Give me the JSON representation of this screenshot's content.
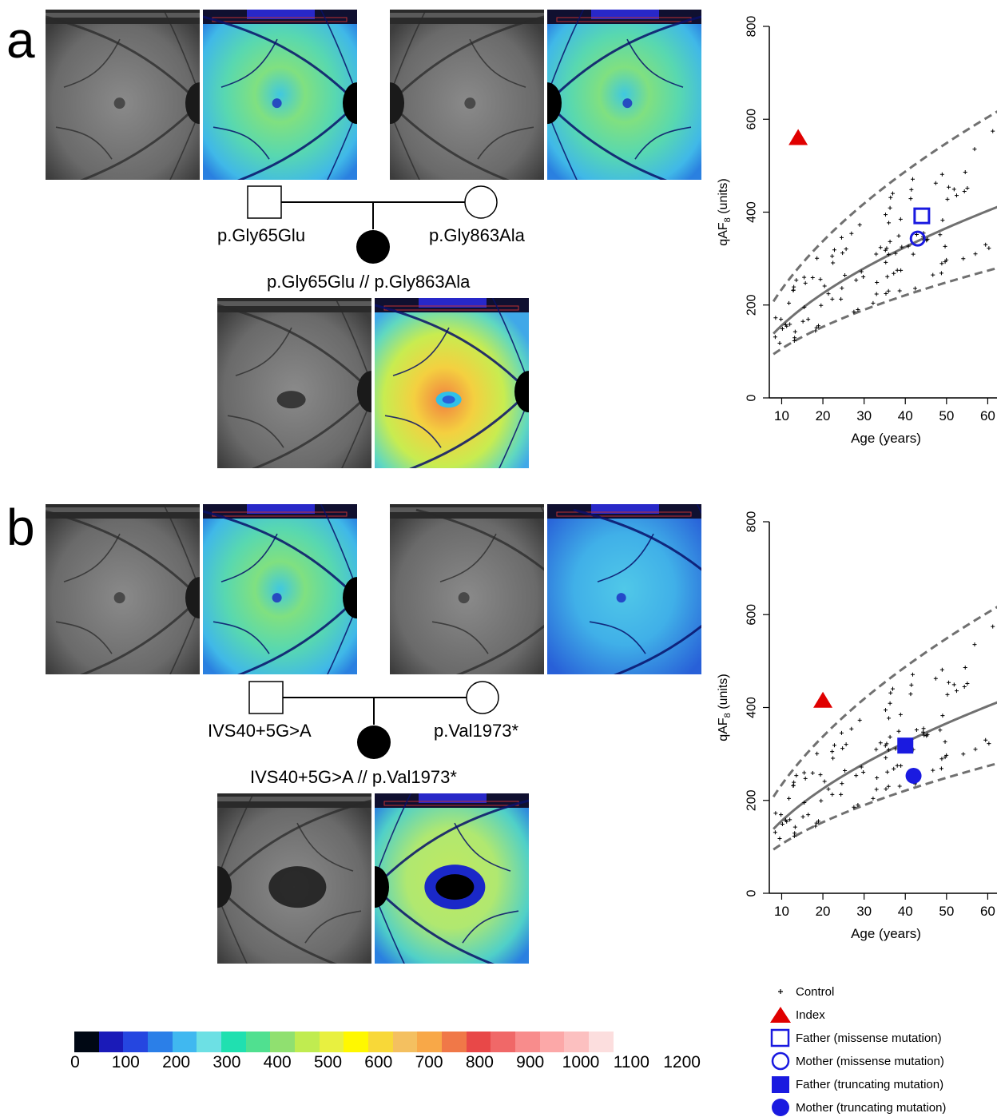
{
  "panels": [
    {
      "letter": "a",
      "father_label": "p.Gly65Glu",
      "mother_label": "p.Gly863Ala",
      "child_label": "p.Gly65Glu // p.Gly863Ala"
    },
    {
      "letter": "b",
      "father_label": "IVS40+5G>A",
      "mother_label": "p.Val1973*",
      "child_label": "IVS40+5G>A // p.Val1973*"
    }
  ],
  "colorbar": {
    "ticks": [
      "0",
      "100",
      "200",
      "300",
      "400",
      "500",
      "600",
      "700",
      "800",
      "900",
      "1000",
      "1100",
      "1200"
    ],
    "colors": [
      "#000814",
      "#1a1ab8",
      "#2546e0",
      "#2b7fe8",
      "#40b8f0",
      "#6de0e4",
      "#20e0b0",
      "#50e090",
      "#90e070",
      "#c0ec50",
      "#e8f040",
      "#fff800",
      "#f8d838",
      "#f4c060",
      "#f8a848",
      "#f07848",
      "#e84848",
      "#f06868",
      "#f88c8c",
      "#fca8a8",
      "#fcc0c0",
      "#fcdede"
    ]
  },
  "legend": [
    {
      "symbol": "plus",
      "label": "Control"
    },
    {
      "symbol": "triangle",
      "label": "Index"
    },
    {
      "symbol": "open-square",
      "label": "Father (missense mutation)"
    },
    {
      "symbol": "open-circle",
      "label": "Mother (missense mutation)"
    },
    {
      "symbol": "filled-square",
      "label": "Father (truncating mutation)"
    },
    {
      "symbol": "filled-circle",
      "label": "Mother (truncating mutation)"
    }
  ],
  "colors": {
    "index": "#e00000",
    "parents": "#1a1ae0",
    "curves": "#707070",
    "controls": "#000000"
  },
  "chart_data": [
    {
      "type": "scatter",
      "xlabel": "Age (years)",
      "ylabel": "qAF8 (units)",
      "ylabel_main": "qAF",
      "ylabel_sub": "8",
      "ylabel_unit": " (units)",
      "xlim": [
        7,
        70
      ],
      "ylim": [
        0,
        800
      ],
      "xticks": [
        10,
        20,
        30,
        40,
        50,
        60
      ],
      "yticks": [
        0,
        200,
        400,
        600,
        800
      ],
      "series": [
        {
          "name": "Index",
          "symbol": "triangle",
          "color": "#e00000",
          "x": [
            14
          ],
          "y": [
            560
          ]
        },
        {
          "name": "Father (missense mutation)",
          "symbol": "open-square",
          "color": "#1a1ae0",
          "x": [
            44
          ],
          "y": [
            392
          ]
        },
        {
          "name": "Mother (missense mutation)",
          "symbol": "open-circle",
          "color": "#1a1ae0",
          "x": [
            43
          ],
          "y": [
            343
          ]
        }
      ]
    },
    {
      "type": "scatter",
      "xlabel": "Age (years)",
      "ylabel": "qAF8 (units)",
      "ylabel_main": "qAF",
      "ylabel_sub": "8",
      "ylabel_unit": " (units)",
      "xlim": [
        7,
        70
      ],
      "ylim": [
        0,
        800
      ],
      "xticks": [
        10,
        20,
        30,
        40,
        50,
        60
      ],
      "yticks": [
        0,
        200,
        400,
        600,
        800
      ],
      "series": [
        {
          "name": "Index",
          "symbol": "triangle",
          "color": "#e00000",
          "x": [
            20
          ],
          "y": [
            415
          ]
        },
        {
          "name": "Father (truncating mutation)",
          "symbol": "filled-square",
          "color": "#1a1ae0",
          "x": [
            40
          ],
          "y": [
            318
          ]
        },
        {
          "name": "Mother (truncating mutation)",
          "symbol": "filled-circle",
          "color": "#1a1ae0",
          "x": [
            42
          ],
          "y": [
            253
          ]
        }
      ]
    }
  ]
}
